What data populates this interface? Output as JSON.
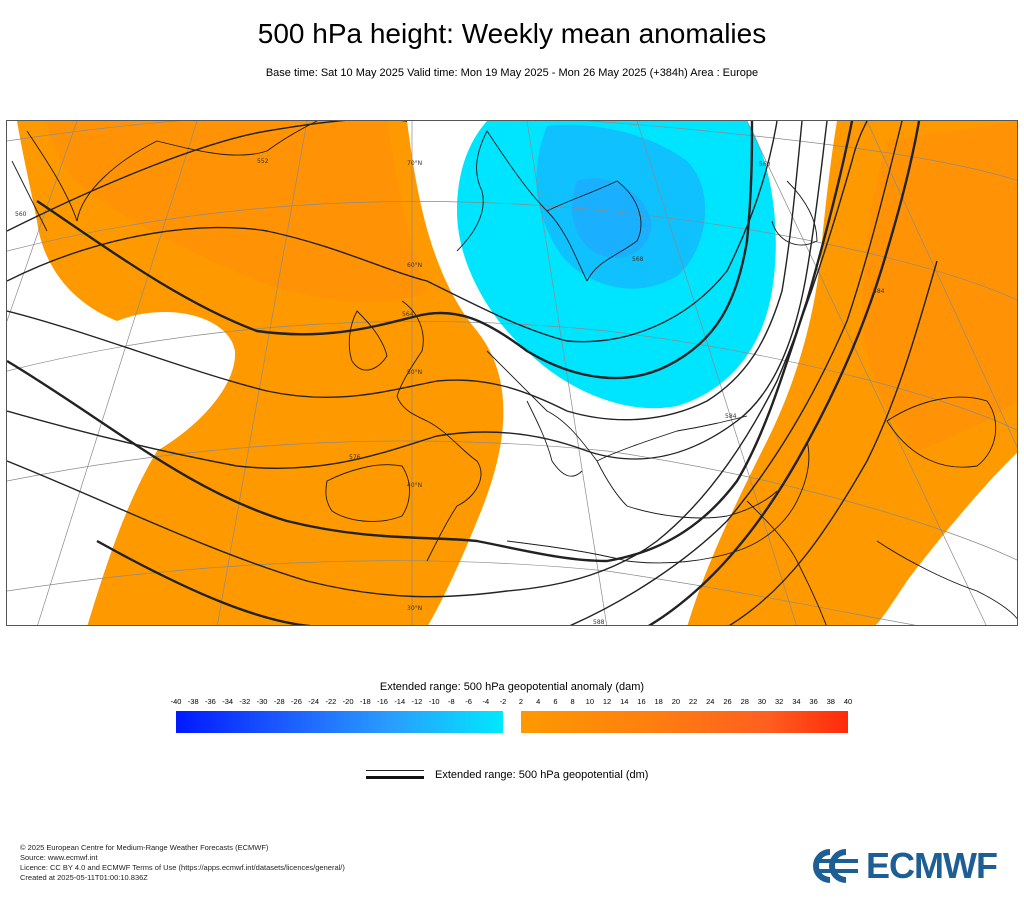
{
  "title": "500 hPa height: Weekly mean anomalies",
  "subtitle": "Base time: Sat 10 May 2025 Valid time: Mon 19 May 2025 - Mon 26 May 2025 (+384h) Area : Europe",
  "map": {
    "area": "Europe",
    "contour_labels": [
      "552",
      "560",
      "564",
      "568",
      "576",
      "584",
      "588",
      "560",
      "584"
    ],
    "latitude_labels": [
      "70°N",
      "60°N",
      "50°N",
      "40°N",
      "30°N"
    ],
    "colors": {
      "positive_anomaly": "#ff9900",
      "positive_anomaly_dark": "#ff8c0a",
      "negative_anomaly": "#00e5ff",
      "negative_anomaly_dark": "#14b4ff",
      "contour": "#222222",
      "coastline": "#1a1a1a",
      "graticule": "#888888"
    }
  },
  "colorbar": {
    "title": "Extended range: 500 hPa geopotential anomaly (dam)",
    "negative_ticks": [
      "-40",
      "-38",
      "-36",
      "-34",
      "-32",
      "-30",
      "-28",
      "-26",
      "-24",
      "-22",
      "-20",
      "-18",
      "-16",
      "-14",
      "-12",
      "-10",
      "-8",
      "-6",
      "-4",
      "-2"
    ],
    "positive_ticks": [
      "2",
      "4",
      "6",
      "8",
      "10",
      "12",
      "14",
      "16",
      "18",
      "20",
      "22",
      "24",
      "26",
      "28",
      "30",
      "32",
      "34",
      "36",
      "38",
      "40"
    ],
    "negative_colors": [
      "#0019ff",
      "#00e8ff"
    ],
    "positive_colors": [
      "#ff9900",
      "#ff2a0a"
    ]
  },
  "legend": {
    "label": "Extended range: 500 hPa geopotential (dm)"
  },
  "footer": {
    "line1": "© 2025 European Centre for Medium-Range Weather Forecasts (ECMWF)",
    "line2": "Source: www.ecmwf.int",
    "line3": "Licence: CC BY 4.0 and ECMWF Terms of Use (https://apps.ecmwf.int/datasets/licences/general/)",
    "line4": "Created at 2025-05-11T01:00:10.836Z"
  },
  "logo": {
    "text": "ECMWF",
    "color": "#1d5e94"
  }
}
